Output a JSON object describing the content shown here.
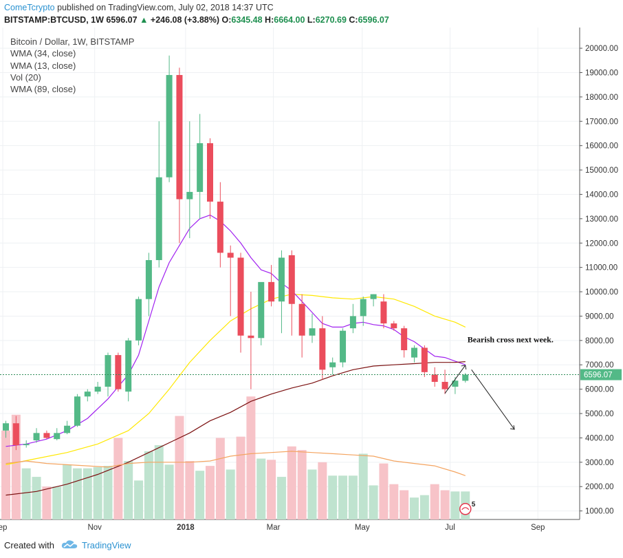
{
  "header": {
    "publisher": "ComeTcrypto",
    "published_text": "published on TradingView.com, July 02, 2018 14:37 UTC",
    "symbol": "BITSTAMP:BTCUSD, 1W",
    "last": "6596.07",
    "change_arrow": "▲",
    "change": "+246.08 (+3.88%)",
    "o_label": "O:",
    "o_value": "6345.48",
    "h_label": "H:",
    "h_value": "6664.00",
    "l_label": "L:",
    "l_value": "6270.69",
    "c_label": "C:",
    "c_value": "6596.07"
  },
  "legend": {
    "title": "Bitcoin / Dollar, 1W, BITSTAMP",
    "ind1": "WMA (34, close)",
    "ind2": "WMA (13, close)",
    "ind3": "Vol (20)",
    "ind4": "WMA (89, close)"
  },
  "footer": {
    "created_with": "Created with",
    "brand": "TradingView"
  },
  "chart_data": {
    "type": "candlestick",
    "ylim": [
      650,
      20850
    ],
    "y_ticks": [
      1000,
      2000,
      3000,
      4000,
      5000,
      6000,
      7000,
      8000,
      9000,
      10000,
      11000,
      12000,
      13000,
      14000,
      15000,
      16000,
      17000,
      18000,
      19000,
      20000
    ],
    "x_labels": [
      {
        "label": "ep",
        "week": -0.3
      },
      {
        "label": "Nov",
        "week": 8.7
      },
      {
        "label": "2018",
        "week": 17.6
      },
      {
        "label": "Mar",
        "week": 26.2
      },
      {
        "label": "May",
        "week": 34.9
      },
      {
        "label": "Jul",
        "week": 43.5
      },
      {
        "label": "Sep",
        "week": 52.1
      }
    ],
    "current_price": 6596.07,
    "current_price_label": "6596.07",
    "candles": [
      [
        4300,
        4700,
        4000,
        4600
      ],
      [
        4600,
        4900,
        3500,
        3700
      ],
      [
        3700,
        3900,
        3600,
        3750
      ],
      [
        3900,
        4400,
        3800,
        4200
      ],
      [
        4200,
        4300,
        3950,
        4000
      ],
      [
        3950,
        4400,
        3900,
        4200
      ],
      [
        4200,
        4700,
        4150,
        4500
      ],
      [
        4500,
        5800,
        4450,
        5700
      ],
      [
        5700,
        6000,
        5500,
        5900
      ],
      [
        5900,
        6300,
        5800,
        6100
      ],
      [
        6100,
        7500,
        5700,
        7400
      ],
      [
        7400,
        7500,
        5900,
        6000
      ],
      [
        5900,
        8100,
        5500,
        8000
      ],
      [
        8000,
        9800,
        7800,
        9700
      ],
      [
        9700,
        11600,
        9000,
        11300
      ],
      [
        11300,
        17000,
        11000,
        14700
      ],
      [
        14700,
        19700,
        14500,
        18900
      ],
      [
        18900,
        19200,
        12000,
        13800
      ],
      [
        13800,
        17000,
        12200,
        14100
      ],
      [
        14100,
        17300,
        13000,
        16100
      ],
      [
        16100,
        16300,
        13000,
        13700
      ],
      [
        13700,
        14500,
        11000,
        11600
      ],
      [
        11600,
        11900,
        9000,
        11400
      ],
      [
        11400,
        11600,
        7500,
        8200
      ],
      [
        8200,
        10000,
        6000,
        8100
      ],
      [
        8100,
        10300,
        7800,
        10400
      ],
      [
        10400,
        11100,
        9400,
        9600
      ],
      [
        9600,
        11700,
        8300,
        11400
      ],
      [
        11500,
        11700,
        8200,
        9500
      ],
      [
        9500,
        9900,
        7300,
        8200
      ],
      [
        8200,
        9100,
        7900,
        8500
      ],
      [
        8500,
        9000,
        6400,
        6800
      ],
      [
        6900,
        7300,
        6600,
        7100
      ],
      [
        7100,
        8500,
        6900,
        8400
      ],
      [
        8500,
        9500,
        8300,
        9000
      ],
      [
        9000,
        9800,
        8600,
        9700
      ],
      [
        9700,
        9900,
        9400,
        9900
      ],
      [
        9600,
        9900,
        8500,
        8700
      ],
      [
        8700,
        8800,
        8400,
        8500
      ],
      [
        8500,
        8600,
        7300,
        7600
      ],
      [
        7300,
        7800,
        7100,
        7700
      ],
      [
        7700,
        7800,
        6500,
        6700
      ],
      [
        6600,
        6900,
        6100,
        6300
      ],
      [
        6300,
        6800,
        5800,
        6000
      ],
      [
        6100,
        6500,
        5800,
        6350
      ],
      [
        6345.48,
        6664,
        6270.69,
        6596.07
      ]
    ],
    "volume": [
      {
        "value": 4300,
        "dir": "down"
      },
      {
        "value": 4950,
        "dir": "down"
      },
      {
        "value": 2750,
        "dir": "up"
      },
      {
        "value": 2400,
        "dir": "up"
      },
      {
        "value": 2000,
        "dir": "down"
      },
      {
        "value": 2000,
        "dir": "up"
      },
      {
        "value": 2900,
        "dir": "up"
      },
      {
        "value": 2750,
        "dir": "up"
      },
      {
        "value": 2750,
        "dir": "up"
      },
      {
        "value": 2800,
        "dir": "up"
      },
      {
        "value": 2850,
        "dir": "up"
      },
      {
        "value": 4000,
        "dir": "down"
      },
      {
        "value": 3050,
        "dir": "up"
      },
      {
        "value": 2250,
        "dir": "up"
      },
      {
        "value": 3450,
        "dir": "up"
      },
      {
        "value": 3700,
        "dir": "up"
      },
      {
        "value": 2900,
        "dir": "up"
      },
      {
        "value": 4900,
        "dir": "down"
      },
      {
        "value": 3050,
        "dir": "down"
      },
      {
        "value": 2650,
        "dir": "up"
      },
      {
        "value": 2850,
        "dir": "down"
      },
      {
        "value": 4000,
        "dir": "down"
      },
      {
        "value": 2700,
        "dir": "up"
      },
      {
        "value": 4050,
        "dir": "down"
      },
      {
        "value": 5700,
        "dir": "down"
      },
      {
        "value": 3150,
        "dir": "up"
      },
      {
        "value": 3100,
        "dir": "down"
      },
      {
        "value": 2400,
        "dir": "up"
      },
      {
        "value": 3650,
        "dir": "down"
      },
      {
        "value": 3500,
        "dir": "down"
      },
      {
        "value": 2700,
        "dir": "up"
      },
      {
        "value": 3000,
        "dir": "down"
      },
      {
        "value": 2450,
        "dir": "up"
      },
      {
        "value": 2450,
        "dir": "up"
      },
      {
        "value": 2450,
        "dir": "up"
      },
      {
        "value": 3350,
        "dir": "up"
      },
      {
        "value": 2050,
        "dir": "up"
      },
      {
        "value": 2950,
        "dir": "down"
      },
      {
        "value": 2100,
        "dir": "down"
      },
      {
        "value": 1850,
        "dir": "down"
      },
      {
        "value": 1550,
        "dir": "up"
      },
      {
        "value": 1650,
        "dir": "up"
      },
      {
        "value": 2100,
        "dir": "down"
      },
      {
        "value": 1850,
        "dir": "down"
      },
      {
        "value": 1800,
        "dir": "up"
      },
      {
        "value": 1800,
        "dir": "up"
      }
    ],
    "series": [
      {
        "name": "WMA (34, close)",
        "color": "#ffe800",
        "points": [
          [
            0,
            2900
          ],
          [
            3,
            3150
          ],
          [
            6,
            3400
          ],
          [
            9,
            3750
          ],
          [
            12,
            4300
          ],
          [
            14,
            5000
          ],
          [
            16,
            6000
          ],
          [
            18,
            7100
          ],
          [
            20,
            8000
          ],
          [
            22,
            8800
          ],
          [
            24,
            9300
          ],
          [
            26,
            9700
          ],
          [
            28,
            9900
          ],
          [
            30,
            9850
          ],
          [
            32,
            9750
          ],
          [
            34,
            9700
          ],
          [
            36,
            9800
          ],
          [
            38,
            9700
          ],
          [
            40,
            9400
          ],
          [
            42,
            9000
          ],
          [
            44,
            8750
          ],
          [
            45,
            8550
          ]
        ]
      },
      {
        "name": "WMA (13, close)",
        "color": "#a020f0",
        "points": [
          [
            0,
            3650
          ],
          [
            2,
            3750
          ],
          [
            4,
            3950
          ],
          [
            6,
            4300
          ],
          [
            8,
            4800
          ],
          [
            10,
            5600
          ],
          [
            11,
            6100
          ],
          [
            12,
            6600
          ],
          [
            13,
            7400
          ],
          [
            14,
            8800
          ],
          [
            15,
            10200
          ],
          [
            16,
            11200
          ],
          [
            17,
            11900
          ],
          [
            18,
            12600
          ],
          [
            19,
            13000
          ],
          [
            20,
            13150
          ],
          [
            21,
            12900
          ],
          [
            22,
            12500
          ],
          [
            23,
            12000
          ],
          [
            24,
            11400
          ],
          [
            25,
            10900
          ],
          [
            26,
            10750
          ],
          [
            27,
            10350
          ],
          [
            28,
            10050
          ],
          [
            29,
            9600
          ],
          [
            30,
            9150
          ],
          [
            31,
            8700
          ],
          [
            32,
            8550
          ],
          [
            33,
            8550
          ],
          [
            34,
            8700
          ],
          [
            35,
            8750
          ],
          [
            36,
            8650
          ],
          [
            37,
            8600
          ],
          [
            38,
            8450
          ],
          [
            39,
            8150
          ],
          [
            40,
            7950
          ],
          [
            41,
            7650
          ],
          [
            42,
            7350
          ],
          [
            43,
            7300
          ],
          [
            44,
            7150
          ],
          [
            45,
            7000
          ]
        ]
      },
      {
        "name": "WMA (89, close)",
        "color": "#7b1010",
        "points": [
          [
            0,
            1650
          ],
          [
            3,
            1800
          ],
          [
            6,
            2100
          ],
          [
            9,
            2500
          ],
          [
            12,
            3000
          ],
          [
            15,
            3600
          ],
          [
            18,
            4200
          ],
          [
            20,
            4700
          ],
          [
            22,
            5050
          ],
          [
            24,
            5500
          ],
          [
            26,
            5800
          ],
          [
            28,
            6050
          ],
          [
            30,
            6250
          ],
          [
            32,
            6550
          ],
          [
            34,
            6800
          ],
          [
            36,
            6950
          ],
          [
            38,
            7000
          ],
          [
            40,
            7050
          ],
          [
            42,
            7100
          ],
          [
            44,
            7100
          ],
          [
            45,
            7130
          ]
        ]
      },
      {
        "name": "Vol (20)",
        "color": "#f4a460",
        "points": [
          [
            0,
            2950
          ],
          [
            2,
            3050
          ],
          [
            4,
            2950
          ],
          [
            6,
            2900
          ],
          [
            8,
            2850
          ],
          [
            10,
            2800
          ],
          [
            12,
            2950
          ],
          [
            14,
            3000
          ],
          [
            16,
            3000
          ],
          [
            18,
            3000
          ],
          [
            20,
            3050
          ],
          [
            22,
            3250
          ],
          [
            24,
            3350
          ],
          [
            26,
            3400
          ],
          [
            28,
            3450
          ],
          [
            30,
            3400
          ],
          [
            32,
            3350
          ],
          [
            34,
            3300
          ],
          [
            36,
            3250
          ],
          [
            38,
            3050
          ],
          [
            40,
            2950
          ],
          [
            42,
            2850
          ],
          [
            44,
            2600
          ],
          [
            45,
            2450
          ]
        ]
      }
    ],
    "annotation": "Bearish cross next week.",
    "flag_number": "5"
  }
}
